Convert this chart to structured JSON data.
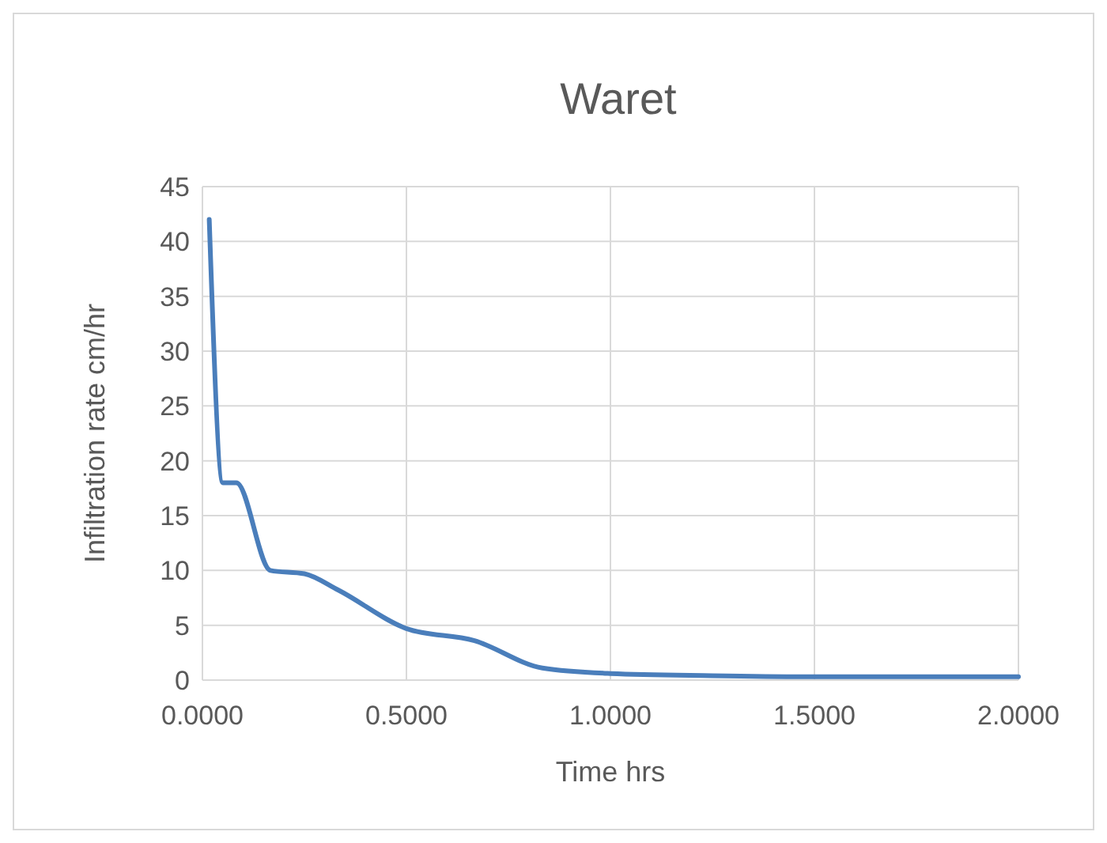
{
  "chart_data": {
    "type": "line",
    "title": "Waret",
    "xlabel": "Time hrs",
    "ylabel": "Infiltration rate cm/hr",
    "x": [
      0.0167,
      0.05,
      0.0833,
      0.1667,
      0.25,
      0.3333,
      0.5,
      0.6667,
      0.8333,
      1.0,
      1.25,
      1.5,
      1.75,
      2.0
    ],
    "series": [
      {
        "color": "#4a7ebb",
        "values": [
          42,
          18,
          18,
          10,
          9.7,
          8.2,
          4.7,
          3.6,
          1.1,
          0.6,
          0.4,
          0.3,
          0.3,
          0.3
        ]
      }
    ],
    "xlim": [
      0,
      2
    ],
    "xticks": [
      {
        "value": 0,
        "label": "0.0000"
      },
      {
        "value": 0.5,
        "label": "0.5000"
      },
      {
        "value": 1,
        "label": "1.0000"
      },
      {
        "value": 1.5,
        "label": "1.5000"
      },
      {
        "value": 2,
        "label": "2.0000"
      }
    ],
    "ylim": [
      0,
      45
    ],
    "yticks": [
      0,
      5,
      10,
      15,
      20,
      25,
      30,
      35,
      40,
      45
    ],
    "grid": true,
    "marker": "none",
    "line_style": "solid"
  }
}
